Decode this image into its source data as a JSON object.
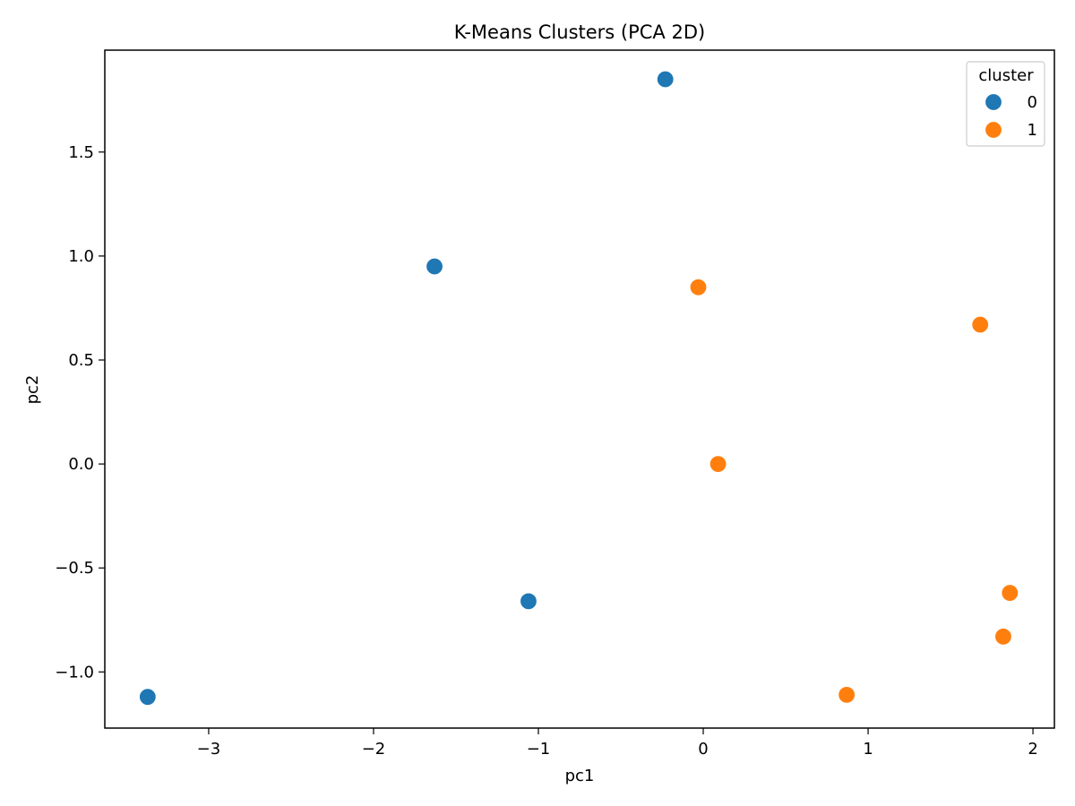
{
  "chart_data": {
    "type": "scatter",
    "title": "K-Means Clusters (PCA 2D)",
    "xlabel": "pc1",
    "ylabel": "pc2",
    "xlim": [
      -3.63,
      2.13
    ],
    "ylim": [
      -1.27,
      1.99
    ],
    "xticks": [
      -3,
      -2,
      -1,
      0,
      1,
      2
    ],
    "xtick_labels": [
      "−3",
      "−2",
      "−1",
      "0",
      "1",
      "2"
    ],
    "yticks": [
      -1.0,
      -0.5,
      0.0,
      0.5,
      1.0,
      1.5
    ],
    "ytick_labels": [
      "−1.0",
      "−0.5",
      "0.0",
      "0.5",
      "1.0",
      "1.5"
    ],
    "grid": false,
    "legend": {
      "title": "cluster",
      "placement": "top-right"
    },
    "series": [
      {
        "name": "0",
        "color": "#1f77b4",
        "points": [
          {
            "x": -0.23,
            "y": 1.85
          },
          {
            "x": -1.63,
            "y": 0.95
          },
          {
            "x": -1.06,
            "y": -0.66
          },
          {
            "x": -3.37,
            "y": -1.12
          }
        ]
      },
      {
        "name": "1",
        "color": "#ff7f0e",
        "points": [
          {
            "x": -0.03,
            "y": 0.85
          },
          {
            "x": 1.68,
            "y": 0.67
          },
          {
            "x": 0.09,
            "y": 0.0
          },
          {
            "x": 1.86,
            "y": -0.62
          },
          {
            "x": 1.82,
            "y": -0.83
          },
          {
            "x": 0.87,
            "y": -1.11
          }
        ]
      }
    ]
  }
}
